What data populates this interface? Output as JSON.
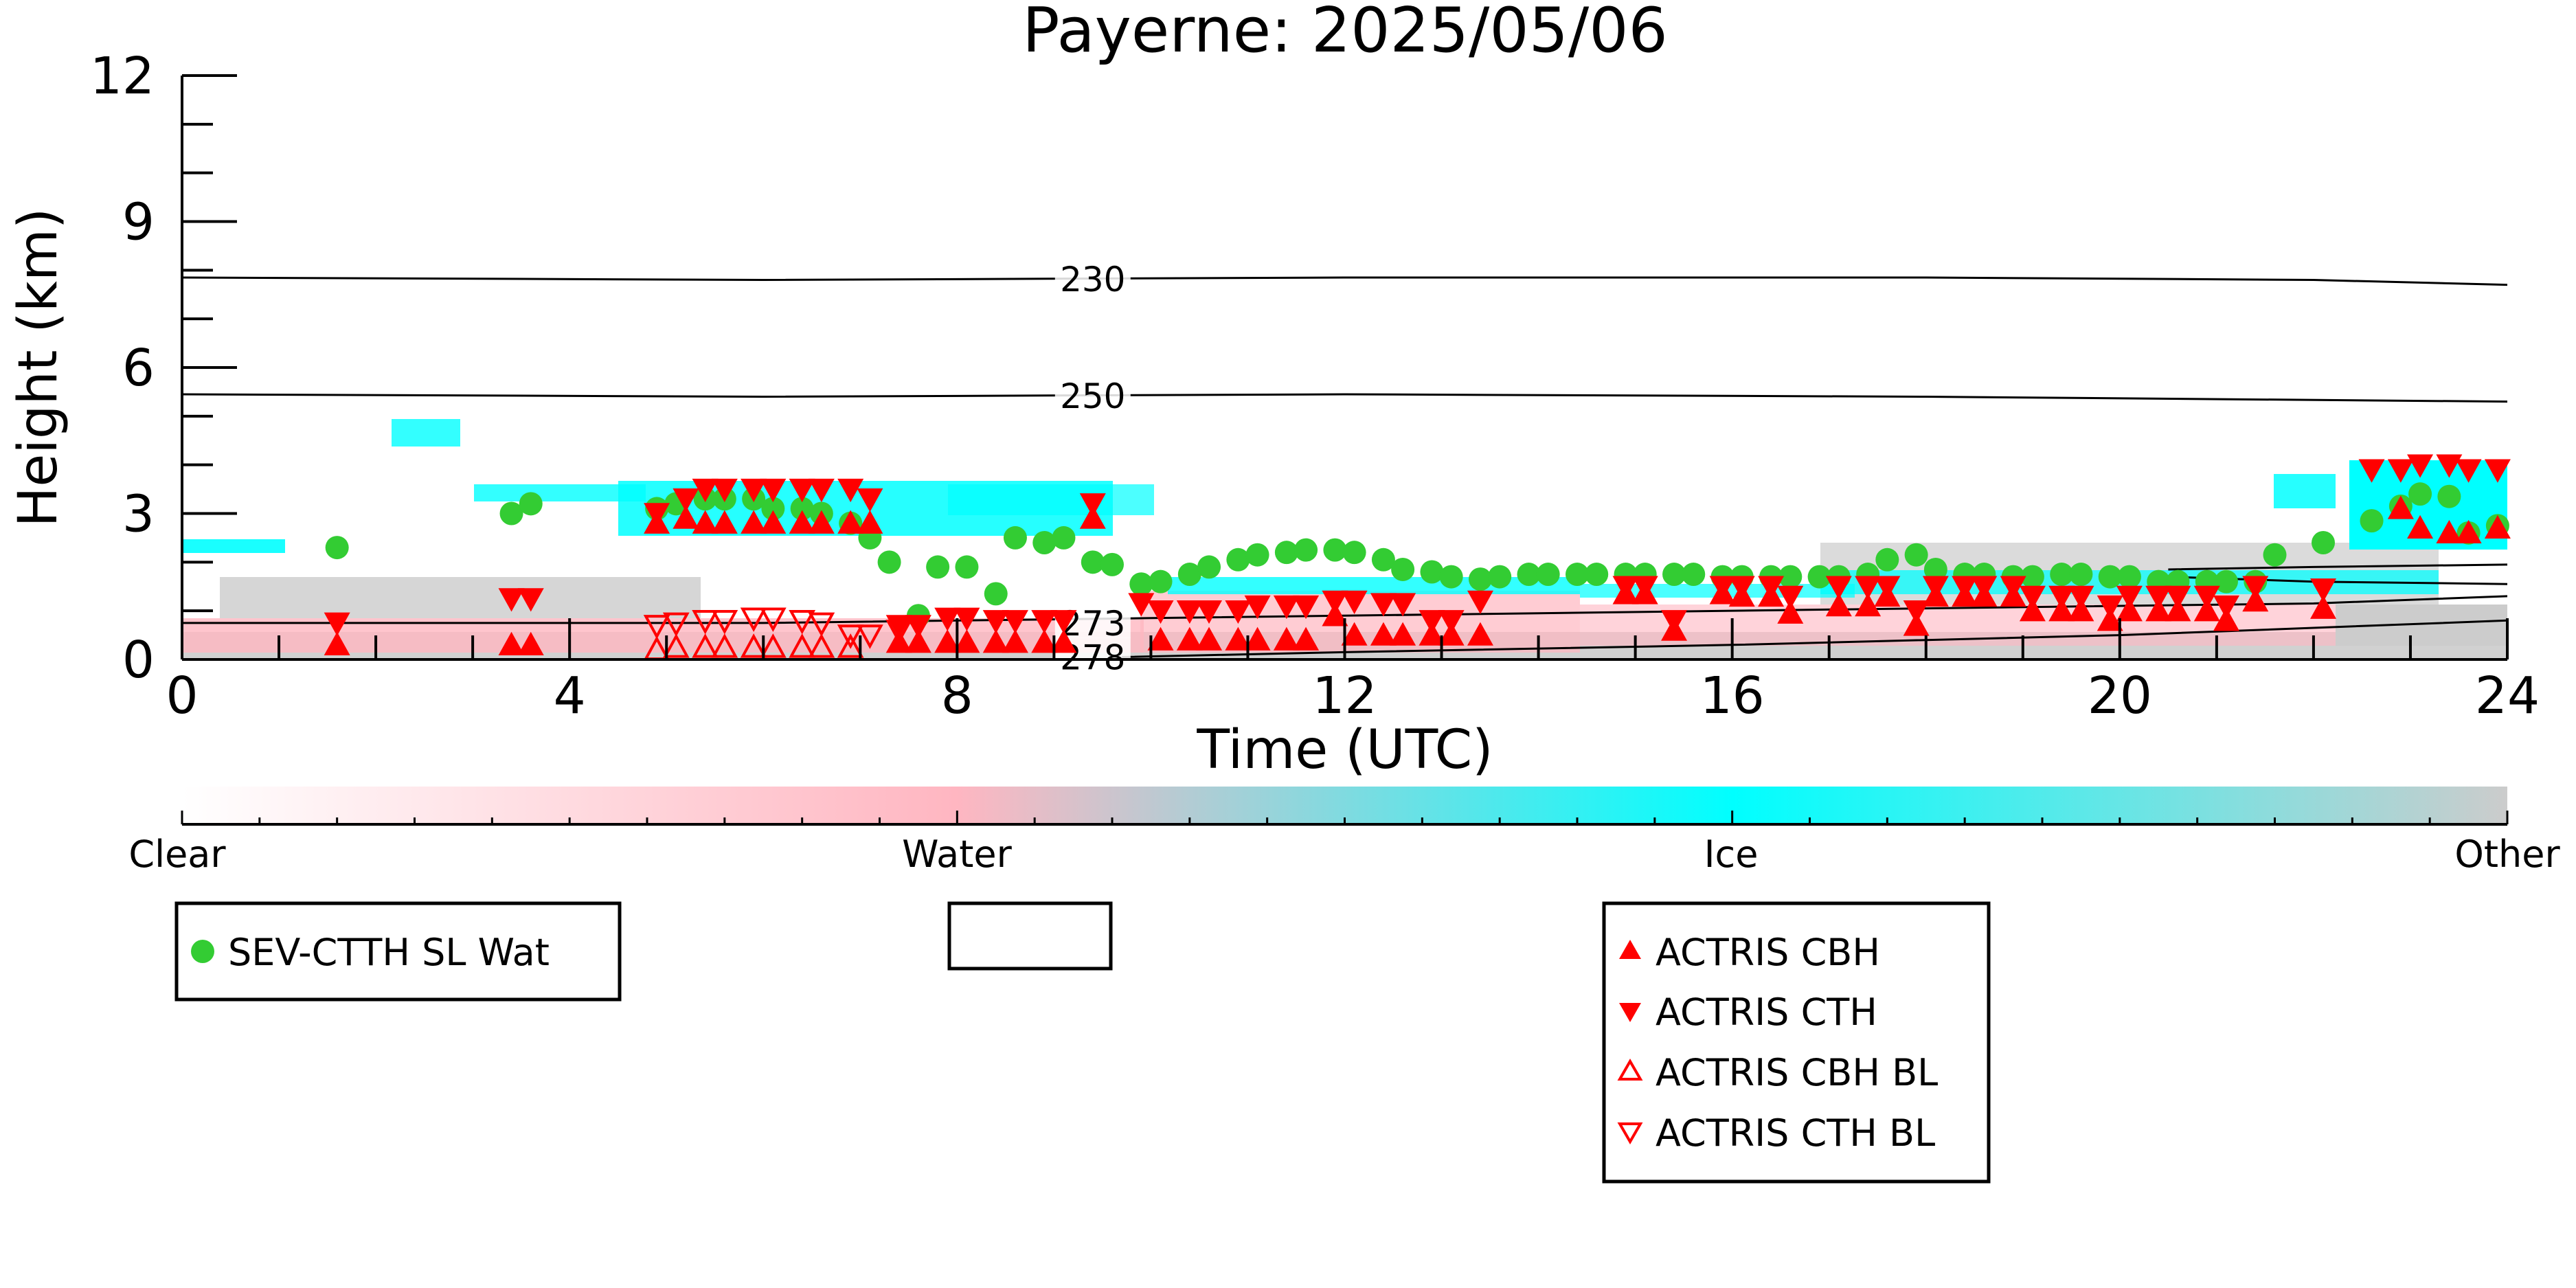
{
  "chart_data": {
    "type": "scatter",
    "title": "Payerne: 2025/05/06",
    "xlabel": "Time (UTC)",
    "ylabel": "Height (km)",
    "xlim": [
      0,
      24
    ],
    "ylim": [
      0,
      12
    ],
    "xticks": [
      0,
      4,
      8,
      12,
      16,
      20,
      24
    ],
    "yticks": [
      0,
      3,
      6,
      9,
      12
    ],
    "grid": false,
    "colorbar": {
      "labels": [
        "Clear",
        "Water",
        "Ice",
        "Other"
      ],
      "colors": [
        "#ffffff",
        "#ffb6c1",
        "#00ffff",
        "#cccccc"
      ]
    },
    "contours": [
      {
        "label": "230",
        "points": [
          [
            0,
            7.85
          ],
          [
            6,
            7.8
          ],
          [
            12,
            7.85
          ],
          [
            18,
            7.85
          ],
          [
            22,
            7.8
          ],
          [
            24,
            7.7
          ]
        ]
      },
      {
        "label": "250",
        "points": [
          [
            0,
            5.45
          ],
          [
            6,
            5.4
          ],
          [
            12,
            5.45
          ],
          [
            18,
            5.4
          ],
          [
            24,
            5.3
          ]
        ]
      },
      {
        "label": "273",
        "points": [
          [
            0,
            0.75
          ],
          [
            6,
            0.75
          ],
          [
            10,
            0.85
          ],
          [
            14,
            0.95
          ],
          [
            18,
            1.05
          ],
          [
            22,
            1.15
          ],
          [
            24,
            1.3
          ]
        ]
      },
      {
        "label": "278",
        "points": [
          [
            9.7,
            0.05
          ],
          [
            12,
            0.15
          ],
          [
            16,
            0.3
          ],
          [
            20,
            0.5
          ],
          [
            22,
            0.65
          ],
          [
            24,
            0.8
          ]
        ]
      }
    ],
    "contour_extra": [
      {
        "points": [
          [
            20.5,
            1.85
          ],
          [
            22,
            1.9
          ],
          [
            24,
            1.95
          ]
        ]
      },
      {
        "points": [
          [
            20.5,
            1.7
          ],
          [
            22,
            1.6
          ],
          [
            24,
            1.55
          ]
        ]
      }
    ],
    "series": [
      {
        "name": "SEV-CTTH SL Wat",
        "marker": "circle",
        "color": "#33cc33",
        "x": [
          1.6,
          3.4,
          3.6,
          4.9,
          5.1,
          5.4,
          5.6,
          5.9,
          6.1,
          6.4,
          6.6,
          6.9,
          7.1,
          7.3,
          7.6,
          7.8,
          8.1,
          8.4,
          8.6,
          8.9,
          9.1,
          9.4,
          9.6,
          9.9,
          10.1,
          10.4,
          10.6,
          10.9,
          11.1,
          11.4,
          11.6,
          11.9,
          12.1,
          12.4,
          12.6,
          12.9,
          13.1,
          13.4,
          13.6,
          13.9,
          14.1,
          14.4,
          14.6,
          14.9,
          15.1,
          15.4,
          15.6,
          15.9,
          16.1,
          16.4,
          16.6,
          16.9,
          17.1,
          17.4,
          17.6,
          17.9,
          18.1,
          18.4,
          18.6,
          18.9,
          19.1,
          19.4,
          19.6,
          19.9,
          20.1,
          20.4,
          20.6,
          20.9,
          21.1,
          21.4,
          21.6,
          22.1,
          22.6,
          22.9,
          23.1,
          23.4,
          23.6,
          23.9
        ],
        "y": [
          2.3,
          3.0,
          3.2,
          3.1,
          3.2,
          3.3,
          3.3,
          3.3,
          3.1,
          3.1,
          3.0,
          2.8,
          2.5,
          2.0,
          0.9,
          1.9,
          1.9,
          1.35,
          2.5,
          2.4,
          2.5,
          2.0,
          1.95,
          1.55,
          1.6,
          1.75,
          1.9,
          2.05,
          2.15,
          2.2,
          2.25,
          2.25,
          2.2,
          2.05,
          1.85,
          1.8,
          1.7,
          1.65,
          1.7,
          1.75,
          1.75,
          1.75,
          1.75,
          1.75,
          1.75,
          1.75,
          1.75,
          1.7,
          1.7,
          1.7,
          1.7,
          1.7,
          1.7,
          1.75,
          2.05,
          2.15,
          1.85,
          1.75,
          1.75,
          1.7,
          1.7,
          1.75,
          1.75,
          1.7,
          1.7,
          1.6,
          1.6,
          1.6,
          1.6,
          1.6,
          2.15,
          2.4,
          2.85,
          3.15,
          3.4,
          3.35,
          2.6,
          2.75
        ]
      },
      {
        "name": "ACTRIS CBH",
        "marker": "triangle-up",
        "color": "#ff0000",
        "x": [
          1.6,
          3.4,
          3.6,
          4.9,
          5.2,
          5.4,
          5.6,
          5.9,
          6.1,
          6.4,
          6.6,
          6.9,
          7.1,
          7.4,
          7.6,
          7.9,
          8.1,
          8.4,
          8.6,
          8.9,
          9.1,
          9.4,
          10.1,
          10.4,
          10.6,
          10.9,
          11.1,
          11.4,
          11.6,
          11.9,
          12.1,
          12.4,
          12.6,
          12.9,
          13.1,
          13.4,
          14.9,
          15.1,
          15.4,
          15.9,
          16.1,
          16.4,
          16.6,
          17.1,
          17.4,
          17.6,
          17.9,
          18.1,
          18.4,
          18.6,
          18.9,
          19.1,
          19.4,
          19.6,
          19.9,
          20.1,
          20.4,
          20.6,
          20.9,
          21.1,
          21.4,
          22.1,
          22.9,
          23.1,
          23.4,
          23.6,
          23.9
        ],
        "y": [
          0.3,
          0.3,
          0.3,
          2.8,
          2.9,
          2.8,
          2.8,
          2.8,
          2.8,
          2.8,
          2.8,
          2.8,
          2.8,
          0.35,
          0.35,
          0.35,
          0.35,
          0.35,
          0.35,
          0.35,
          0.35,
          2.9,
          0.4,
          0.4,
          0.4,
          0.4,
          0.4,
          0.4,
          0.4,
          0.9,
          0.5,
          0.5,
          0.5,
          0.5,
          0.5,
          0.5,
          1.35,
          1.35,
          0.6,
          1.35,
          1.3,
          1.3,
          0.95,
          1.1,
          1.1,
          1.3,
          0.7,
          1.3,
          1.3,
          1.3,
          1.3,
          1.0,
          1.0,
          1.0,
          0.8,
          1.0,
          1.0,
          1.0,
          1.0,
          0.8,
          1.2,
          1.05,
          3.1,
          2.7,
          2.6,
          2.6,
          2.7
        ]
      },
      {
        "name": "ACTRIS CTH",
        "marker": "triangle-down",
        "color": "#ff0000",
        "x": [
          1.6,
          3.4,
          3.6,
          4.9,
          5.2,
          5.4,
          5.6,
          5.9,
          6.1,
          6.4,
          6.6,
          6.9,
          7.1,
          7.4,
          7.6,
          7.9,
          8.1,
          8.4,
          8.6,
          8.9,
          9.1,
          9.4,
          9.9,
          10.1,
          10.4,
          10.6,
          10.9,
          11.1,
          11.4,
          11.6,
          11.9,
          12.1,
          12.4,
          12.6,
          12.9,
          13.1,
          13.4,
          14.9,
          15.1,
          15.4,
          15.9,
          16.1,
          16.4,
          16.6,
          17.1,
          17.4,
          17.6,
          17.9,
          18.1,
          18.4,
          18.6,
          18.9,
          19.1,
          19.4,
          19.6,
          19.9,
          20.1,
          20.4,
          20.6,
          20.9,
          21.1,
          21.4,
          22.1,
          22.6,
          22.9,
          23.1,
          23.4,
          23.6,
          23.9
        ],
        "y": [
          0.75,
          1.25,
          1.25,
          3.0,
          3.3,
          3.5,
          3.5,
          3.5,
          3.5,
          3.5,
          3.5,
          3.5,
          3.3,
          0.7,
          0.7,
          0.85,
          0.85,
          0.8,
          0.8,
          0.8,
          0.8,
          3.2,
          1.15,
          1.0,
          1.0,
          1.0,
          1.0,
          1.1,
          1.1,
          1.1,
          1.2,
          1.2,
          1.15,
          1.15,
          0.8,
          0.8,
          1.2,
          1.5,
          1.5,
          0.8,
          1.5,
          1.5,
          1.5,
          1.3,
          1.5,
          1.5,
          1.5,
          1.0,
          1.5,
          1.5,
          1.5,
          1.5,
          1.3,
          1.3,
          1.3,
          1.1,
          1.3,
          1.3,
          1.3,
          1.3,
          1.1,
          1.5,
          1.45,
          3.9,
          3.9,
          4.0,
          4.0,
          3.9,
          3.9
        ]
      },
      {
        "name": "ACTRIS CBH BL",
        "marker": "triangle-up-open",
        "color": "#ff0000",
        "x": [
          4.9,
          5.1,
          5.4,
          5.6,
          5.9,
          6.1,
          6.4,
          6.6,
          6.9
        ],
        "y": [
          0.2,
          0.25,
          0.25,
          0.25,
          0.25,
          0.25,
          0.25,
          0.25,
          0.25
        ]
      },
      {
        "name": "ACTRIS CTH BL",
        "marker": "triangle-down-open",
        "color": "#ff0000",
        "x": [
          4.9,
          5.1,
          5.4,
          5.6,
          5.9,
          6.1,
          6.4,
          6.6,
          6.9,
          7.1,
          7.4
        ],
        "y": [
          0.7,
          0.75,
          0.8,
          0.8,
          0.85,
          0.85,
          0.8,
          0.75,
          0.5,
          0.5,
          0.6
        ]
      }
    ],
    "legend": {
      "left": [
        "SEV-CTTH SL Wat"
      ],
      "right": [
        "ACTRIS CBH",
        "ACTRIS CTH",
        "ACTRIS CBH BL",
        "ACTRIS CTH BL"
      ]
    }
  }
}
